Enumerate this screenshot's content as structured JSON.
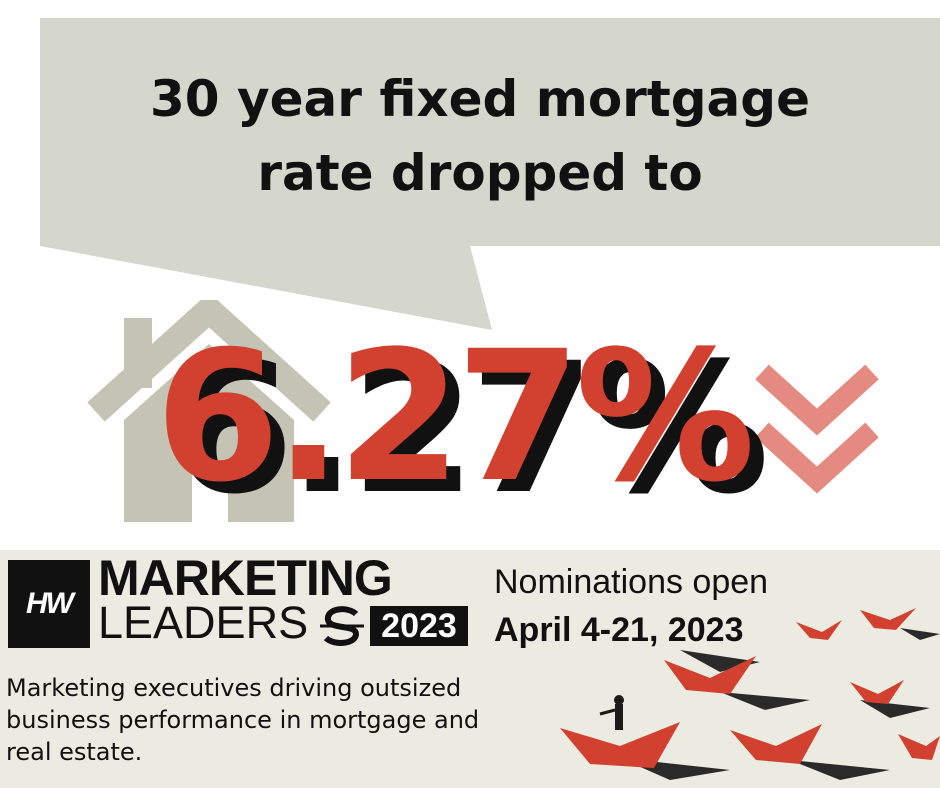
{
  "headline": {
    "line1": "30 year fixed mortgage",
    "line2": "rate dropped to"
  },
  "rate": "6.27%",
  "icons": {
    "house": "house-icon",
    "arrows": "double-chevron-down-icon",
    "boats": "paper-boats-illustration"
  },
  "colors": {
    "accent_red": "#d2402f",
    "callout_gray": "#d5d6cc",
    "icon_gray": "#c5c4b4",
    "banner_bg": "#ecebe1"
  },
  "banner": {
    "logo": "HW",
    "brand_line1": "MARKETING",
    "brand_line2": "LEADERS",
    "brand_year": "2023",
    "nominations_line1": "Nominations open",
    "nominations_line2": "April 4-21, 2023",
    "description": "Marketing executives driving outsized business performance in mortgage and real estate."
  }
}
